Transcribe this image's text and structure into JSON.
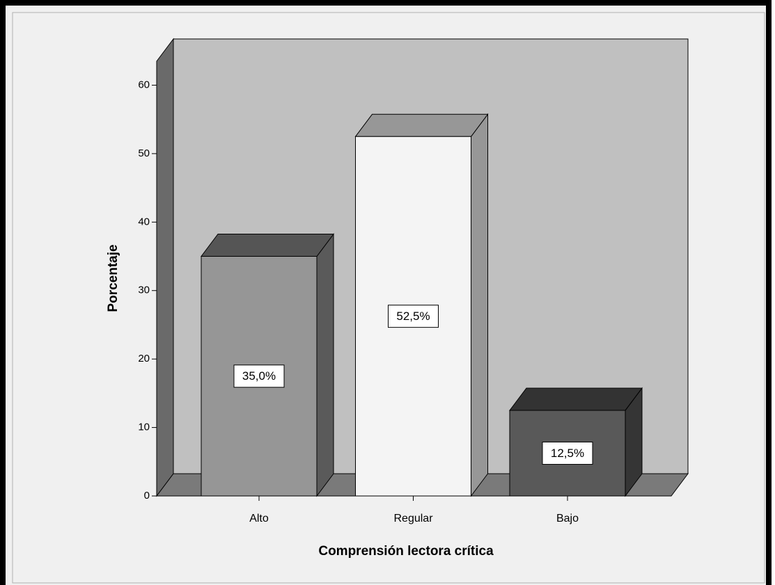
{
  "chart_data": {
    "type": "bar3d",
    "x_label": "Comprensión lectora crítica",
    "y_label": "Porcentaje",
    "categories": [
      "Alto",
      "Regular",
      "Bajo"
    ],
    "values": [
      35,
      52.5,
      12.5
    ],
    "value_labels": [
      "35,0%",
      "52,5%",
      "12,5%"
    ],
    "colors": [
      "#969696",
      "#f4f4f4",
      "#595959"
    ],
    "ylim": [
      0,
      63.5
    ],
    "yticks": [
      0,
      10,
      20,
      30,
      40,
      50,
      60
    ]
  }
}
